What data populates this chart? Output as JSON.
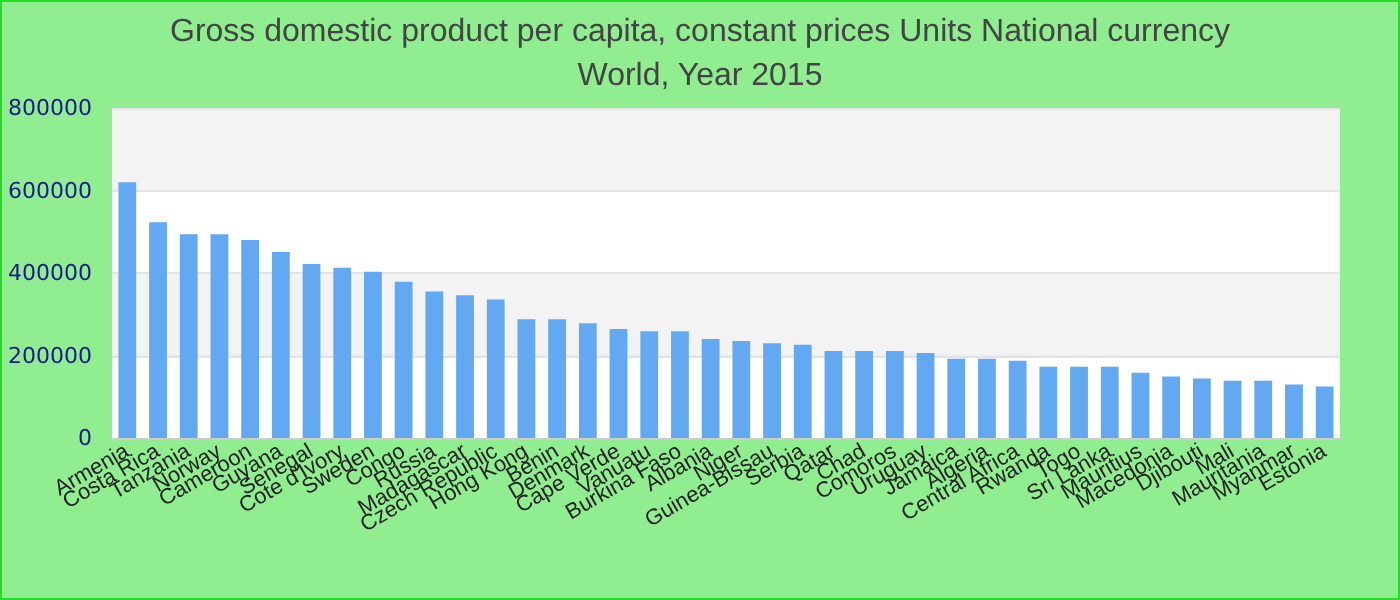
{
  "chart_data": {
    "type": "bar",
    "title": "Gross domestic product per capita, constant prices Units National currency",
    "subtitle": "World, Year 2015",
    "categories": [
      "Armenia",
      "Costa Rica",
      "Tanzania",
      "Norway",
      "Cameroon",
      "Guyana",
      "Senegal",
      "Cote d'Ivory",
      "Sweden",
      "Congo",
      "Russia",
      "Madagascar",
      "Czech Republic",
      "Hong Kong",
      "Benin",
      "Denmark",
      "Cape Verde",
      "Vanuatu",
      "Burkina Faso",
      "Albania",
      "Niger",
      "Guinea-Bissau",
      "Serbia",
      "Qatar",
      "Chad",
      "Comoros",
      "Uruguay",
      "Jamaica",
      "Algeria",
      "Central Africa",
      "Rwanda",
      "Togo",
      "Sri Lanka",
      "Mauritius",
      "Macedonia",
      "Djibouti",
      "Mali",
      "Mauritania",
      "Myanmar",
      "Estonia"
    ],
    "values": [
      620000,
      523000,
      494000,
      494000,
      480000,
      451000,
      422000,
      413000,
      403000,
      379000,
      355000,
      346000,
      336000,
      288000,
      288000,
      278000,
      264000,
      259000,
      259000,
      240000,
      235000,
      230000,
      226000,
      211000,
      211000,
      211000,
      206000,
      192000,
      192000,
      187000,
      173000,
      173000,
      173000,
      158000,
      149000,
      144000,
      139000,
      139000,
      130000,
      125000
    ],
    "color": "#63a9f2",
    "ylim": [
      0,
      800000
    ],
    "yticks": [
      0,
      200000,
      400000,
      600000,
      800000
    ],
    "grid": "y"
  }
}
